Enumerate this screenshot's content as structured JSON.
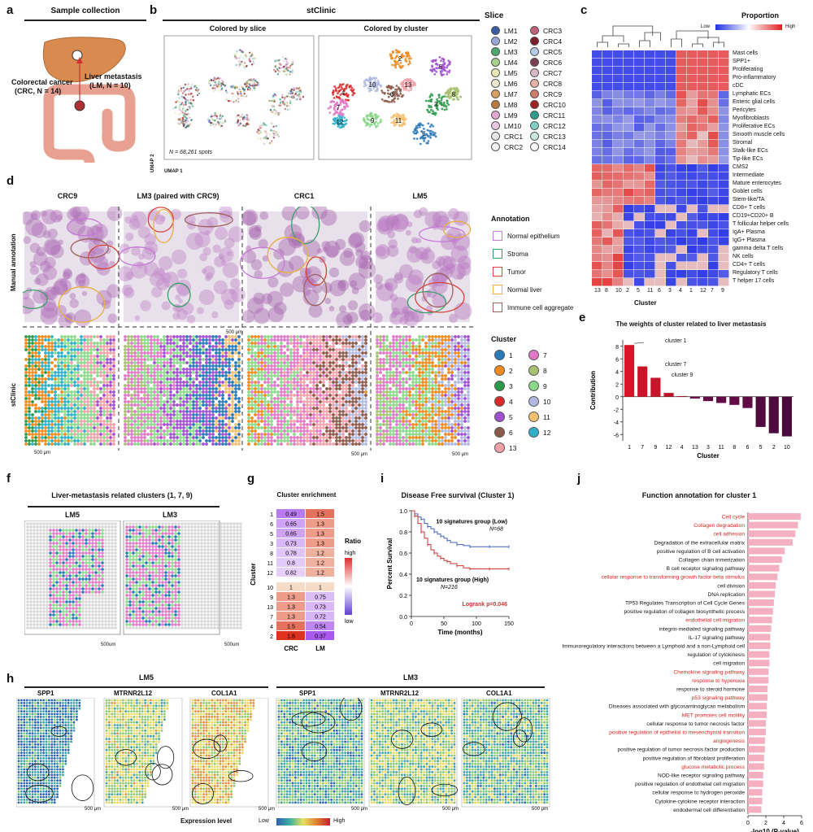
{
  "panels": {
    "a": "a",
    "b": "b",
    "c": "c",
    "d": "d",
    "e": "e",
    "f": "f",
    "g": "g",
    "h": "h",
    "i": "i",
    "j": "j"
  },
  "a": {
    "title": "Sample collection",
    "liver_label": "Liver metastasis",
    "liver_sub": "(LM, N = 10)",
    "crc_label": "Colorectal cancer",
    "crc_sub": "(CRC, N = 14)"
  },
  "b": {
    "title": "stClinic",
    "left_title": "Colored by slice",
    "right_title": "Colored by cluster",
    "n_spots": "N = 68,261 spots",
    "umap1": "UMAP 1",
    "umap2": "UMAP 2",
    "cluster_labels": [
      "1",
      "2",
      "3",
      "4",
      "5",
      "6",
      "7",
      "8",
      "9",
      "10",
      "11",
      "12",
      "13"
    ],
    "slice_legend_title": "Slice",
    "slices": [
      {
        "name": "LM1",
        "color": "#3b5ba5"
      },
      {
        "name": "CRC3",
        "color": "#c2607a"
      },
      {
        "name": "LM2",
        "color": "#9aa6d6"
      },
      {
        "name": "CRC4",
        "color": "#7b1d2a"
      },
      {
        "name": "LM3",
        "color": "#4aa870"
      },
      {
        "name": "CRC5",
        "color": "#b8c8e8"
      },
      {
        "name": "LM4",
        "color": "#a6d28e"
      },
      {
        "name": "CRC6",
        "color": "#7a3e55"
      },
      {
        "name": "LM5",
        "color": "#e8e8b0"
      },
      {
        "name": "CRC7",
        "color": "#d8b8c8"
      },
      {
        "name": "LM6",
        "color": "#ece8d0"
      },
      {
        "name": "CRC8",
        "color": "#e6b0a8"
      },
      {
        "name": "LM7",
        "color": "#d8a060"
      },
      {
        "name": "CRC9",
        "color": "#d07a6a"
      },
      {
        "name": "LM8",
        "color": "#b87a3a"
      },
      {
        "name": "CRC10",
        "color": "#a02020"
      },
      {
        "name": "LM9",
        "color": "#e0a8d0"
      },
      {
        "name": "CRC11",
        "color": "#2a9a8a"
      },
      {
        "name": "LM10",
        "color": "#e8c8e0"
      },
      {
        "name": "CRC12",
        "color": "#7ed0c0"
      },
      {
        "name": "CRC1",
        "color": "#e8e8e8"
      },
      {
        "name": "CRC13",
        "color": "#c8e8e0"
      },
      {
        "name": "CRC2",
        "color": "#f0f0f0"
      },
      {
        "name": "CRC14",
        "color": "#f8f8f8"
      }
    ]
  },
  "c": {
    "title": "Proportion",
    "low": "Low",
    "high": "High",
    "xlabel": "Cluster",
    "cluster_order": [
      "13",
      "8",
      "10",
      "2",
      "5",
      "11",
      "6",
      "3",
      "4",
      "1",
      "12",
      "7",
      "9"
    ],
    "rows": [
      "Mast cells",
      "SPP1+",
      "Proliferating",
      "Pro-inflammatory",
      "cDC",
      "Lymphatic ECs",
      "Enteric glial cells",
      "Pericytes",
      "Myofibroblasts",
      "Proliferative ECs",
      "Smooth muscle cells",
      "Stromal",
      "Stalk-like ECs",
      "Tip-like ECs",
      "CMS2",
      "Intermediate",
      "Mature enterocytes",
      "Goblet cells",
      "Stem-like/TA",
      "CD8+ T cells",
      "CD19+CD20+ B",
      "T follicular helper cells",
      "IgA+ Plasma",
      "IgG+ Plasma",
      "gamma delta T cells",
      "NK cells",
      "CD4+ T cells",
      "Regulatory T cells",
      "T helper 17 cells"
    ]
  },
  "d": {
    "samples": [
      "CRC9",
      "LM3 (paired with CRC9)",
      "CRC1",
      "LM5"
    ],
    "row1": "Manual annotation",
    "row2": "stClinic",
    "scale": "500 μm",
    "annotation_title": "Annotation",
    "annotations": [
      {
        "name": "Normal epithelium",
        "color": "#c87ad8"
      },
      {
        "name": "Stroma",
        "color": "#3aa06a"
      },
      {
        "name": "Tumor",
        "color": "#d8443a"
      },
      {
        "name": "Normal liver",
        "color": "#e8b040"
      },
      {
        "name": "Immune cell aggregate",
        "color": "#a06060"
      }
    ],
    "cluster_title": "Cluster",
    "clusters": [
      {
        "name": "1",
        "color": "#2a7ab8"
      },
      {
        "name": "7",
        "color": "#e078c8"
      },
      {
        "name": "2",
        "color": "#f08a1c"
      },
      {
        "name": "8",
        "color": "#a8c070"
      },
      {
        "name": "3",
        "color": "#2a9a4a"
      },
      {
        "name": "9",
        "color": "#8ad88a"
      },
      {
        "name": "4",
        "color": "#d82a2a"
      },
      {
        "name": "10",
        "color": "#b0b8e0"
      },
      {
        "name": "5",
        "color": "#a050d0"
      },
      {
        "name": "11",
        "color": "#f4c070"
      },
      {
        "name": "6",
        "color": "#8a5a4a"
      },
      {
        "name": "12",
        "color": "#30b0c8"
      },
      {
        "name": "13",
        "color": "#f0a0a8"
      }
    ]
  },
  "e": {
    "title": "The weights of cluster related to liver metastasis",
    "ann1": "cluster 1",
    "ann7": "cluster 7",
    "ann9": "cluster 9"
  },
  "chart_data": [
    {
      "type": "bar",
      "title": "The weights of cluster related to liver metastasis",
      "xlabel": "Cluster",
      "ylabel": "Contribution",
      "categories": [
        "1",
        "7",
        "9",
        "12",
        "4",
        "13",
        "3",
        "11",
        "8",
        "6",
        "5",
        "2",
        "10"
      ],
      "values": [
        8.2,
        4.8,
        3.0,
        0.6,
        0.1,
        -0.3,
        -0.7,
        -1.0,
        -1.3,
        -1.8,
        -4.8,
        -5.8,
        -6.3
      ],
      "ylim": [
        -7,
        9
      ],
      "yticks": [
        "-6",
        "-4",
        "-2",
        "0",
        "2",
        "4",
        "6",
        "8"
      ]
    },
    {
      "type": "heatmap",
      "title": "Cluster enrichment",
      "ylabel": "Cluster",
      "columns": [
        "CRC",
        "LM"
      ],
      "rows": [
        "1",
        "6",
        "5",
        "3",
        "8",
        "11",
        "12",
        "10",
        "9",
        "13",
        "7",
        "4",
        "2"
      ],
      "values": [
        [
          0.49,
          1.5
        ],
        [
          0.65,
          1.3
        ],
        [
          0.65,
          1.3
        ],
        [
          0.73,
          1.3
        ],
        [
          0.78,
          1.2
        ],
        [
          0.8,
          1.2
        ],
        [
          0.82,
          1.2
        ],
        [
          1,
          1
        ],
        [
          1.3,
          0.75
        ],
        [
          1.3,
          0.73
        ],
        [
          1.3,
          0.72
        ],
        [
          1.5,
          0.54
        ],
        [
          1.8,
          0.37
        ]
      ],
      "legend_title": "Ratio",
      "legend_high": "high",
      "legend_low": "low"
    },
    {
      "type": "line",
      "title": "Disease Free survival (Cluster 1)",
      "xlabel": "Time (months)",
      "ylabel": "Percent Survival",
      "xlim": [
        0,
        150
      ],
      "ylim": [
        0,
        1.0
      ],
      "xticks": [
        "0",
        "50",
        "100",
        "150"
      ],
      "yticks": [
        "0.0",
        "0.2",
        "0.4",
        "0.6",
        "0.8",
        "1.0"
      ],
      "series": [
        {
          "name": "10 signatures group (Low)",
          "n": "N=68",
          "color": "#4060c0",
          "x": [
            0,
            5,
            10,
            15,
            20,
            25,
            30,
            35,
            40,
            45,
            50,
            55,
            60,
            70,
            80,
            90,
            100,
            120,
            140,
            150
          ],
          "y": [
            1.0,
            0.97,
            0.94,
            0.92,
            0.88,
            0.85,
            0.83,
            0.8,
            0.78,
            0.76,
            0.74,
            0.72,
            0.7,
            0.68,
            0.67,
            0.66,
            0.66,
            0.66,
            0.66,
            0.66
          ]
        },
        {
          "name": "10 signatures group (High)",
          "n": "N=216",
          "color": "#d03030",
          "x": [
            0,
            5,
            10,
            15,
            20,
            25,
            30,
            35,
            40,
            45,
            50,
            55,
            60,
            70,
            80,
            90,
            100,
            120,
            140,
            150
          ],
          "y": [
            1.0,
            0.95,
            0.88,
            0.8,
            0.74,
            0.68,
            0.63,
            0.6,
            0.57,
            0.55,
            0.53,
            0.52,
            0.5,
            0.48,
            0.46,
            0.45,
            0.45,
            0.45,
            0.45,
            0.45
          ]
        }
      ],
      "logrank": "Logrank p=0.046"
    },
    {
      "type": "bar",
      "orientation": "horizontal",
      "title": "Function annotation for cluster 1",
      "xlabel": "-log10 (P-value)",
      "xlim": [
        0,
        6
      ],
      "xticks": [
        "0",
        "2",
        "4",
        "6"
      ],
      "categories": [
        "Cell cycle",
        "Collagen degradation",
        "cell adhesion",
        "Degradation of the extracellular matrix",
        "positive regulation of B cell activation",
        "Collagen chain trimerization",
        "B cell receptor signaling pathway",
        "cellular response to transforming growth factor beta stimulus",
        "cell division",
        "DNA replication",
        "TP53 Regulates Transcription of Cell Cycle Genes",
        "positive regulation of collagen biosynthetic process",
        "endothelial cell migration",
        "integrin-mediated signaling pathway",
        "IL-17 signaling pathway",
        "Immunoregulatory interactions between a Lymphoid and a non-Lymphoid cell",
        "regulation of cytokinesis",
        "cell migration",
        "Chemokine signaling pathway",
        "response to hyperoxia",
        "response to steroid hormone",
        "p53 signaling pathway",
        "Diseases associated with glycosaminoglycan metabolism",
        "MET promotes cell motility",
        "cellular response to tumor necrosis factor",
        "positive regulation of epithelial to mesenchymal transition",
        "angiogenesis",
        "positive regulation of tumor necrosis factor production",
        "positive regulation of fibroblast proliferation",
        "glucose metabolic process",
        "NOD-like receptor signaling pathway",
        "positive regulation of endothelial cell migration",
        "cellular response to hydrogen peroxide",
        "Cytokine-cytokine receptor interaction",
        "endodermal cell differentiation"
      ],
      "values": [
        5.9,
        5.6,
        5.3,
        5.0,
        4.1,
        3.8,
        3.5,
        3.3,
        3.1,
        3.0,
        2.9,
        2.8,
        2.7,
        2.6,
        2.5,
        2.5,
        2.4,
        2.4,
        2.3,
        2.3,
        2.2,
        2.2,
        2.1,
        2.1,
        2.0,
        2.0,
        1.9,
        1.9,
        1.8,
        1.8,
        1.7,
        1.7,
        1.6,
        1.6,
        1.5
      ],
      "highlighted": [
        "Cell cycle",
        "Collagen degradation",
        "cell adhesion",
        "cellular response to transforming growth factor beta stimulus",
        "endothelial cell migration",
        "Chemokine signaling pathway",
        "response to hyperoxia",
        "p53 signaling pathway",
        "MET promotes cell motility",
        "positive regulation of epithelial to mesenchymal transition",
        "angiogenesis",
        "glucose metabolic process"
      ]
    }
  ],
  "f": {
    "title": "Liver-metastasis related clusters (1, 7, 9)",
    "left": "LM5",
    "right": "LM3",
    "scale": "500um"
  },
  "h": {
    "left_group": "LM5",
    "right_group": "LM3",
    "genes": [
      "SPP1",
      "MTRNR2L12",
      "COL1A1"
    ],
    "scale": "500 μm",
    "expr_label": "Expression level",
    "low": "Low",
    "high": "High"
  }
}
